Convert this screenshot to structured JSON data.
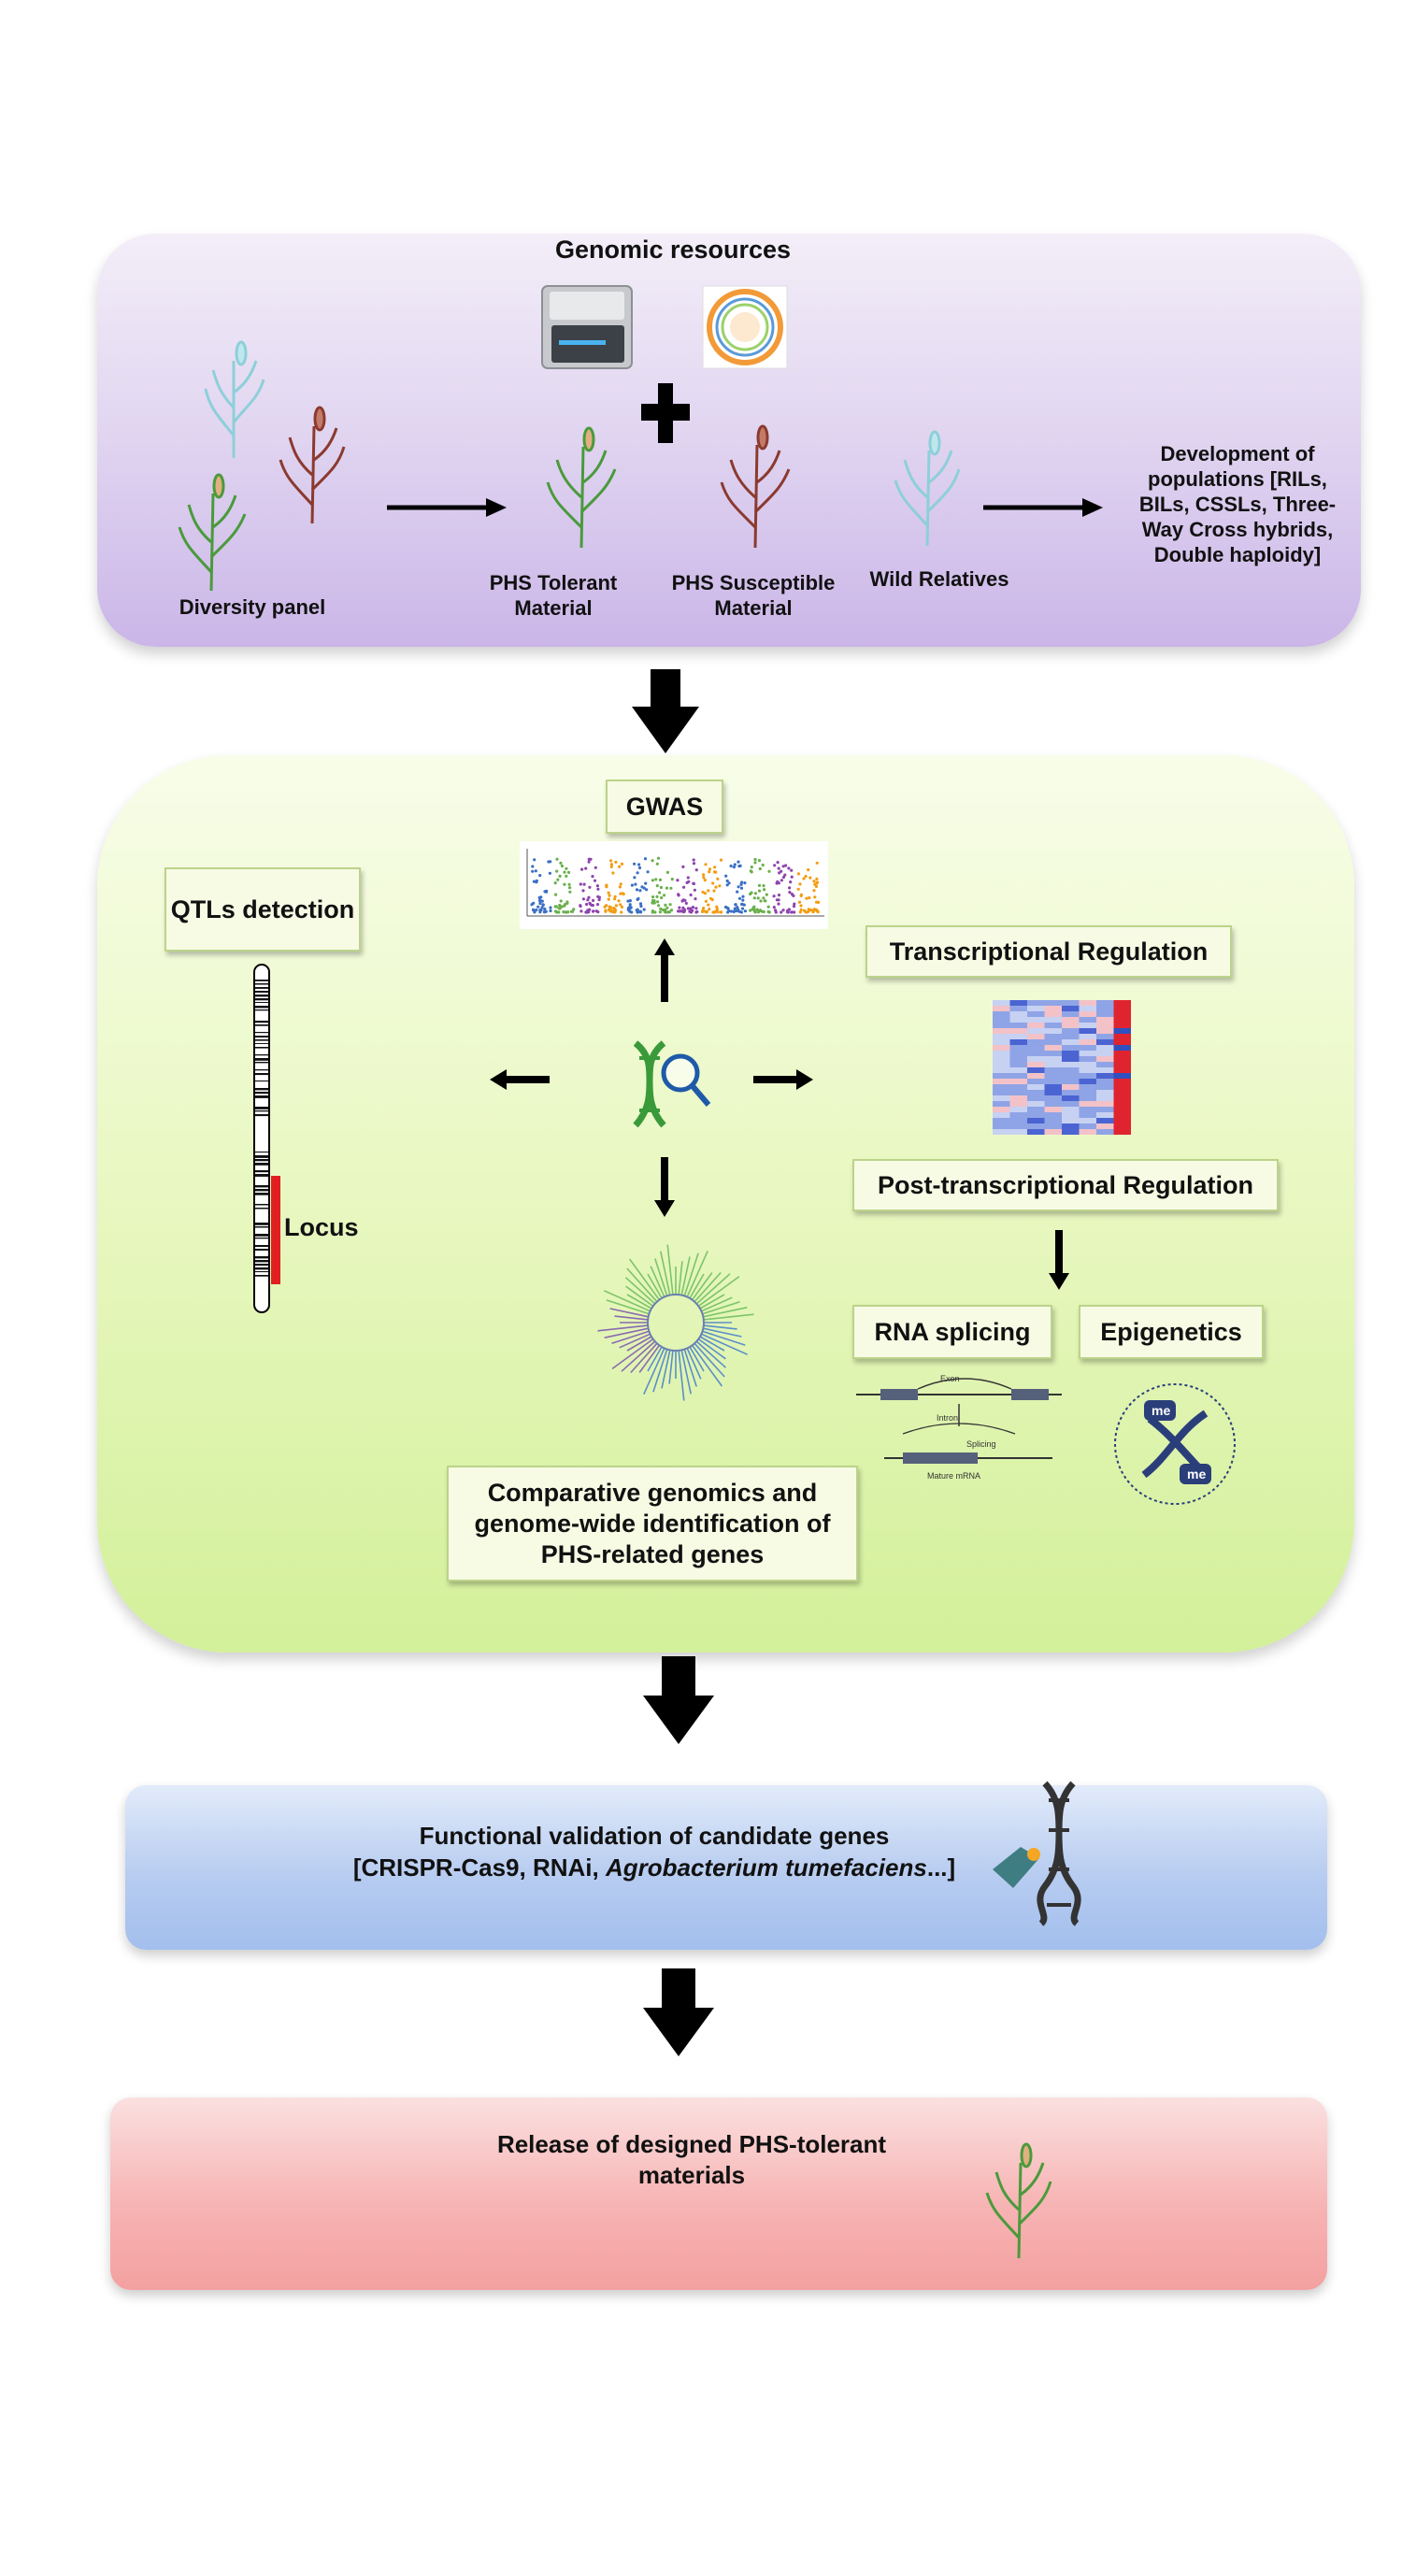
{
  "genomic_resources": {
    "title": "Genomic resources",
    "diversity_panel": "Diversity panel",
    "phs_tolerant": "PHS Tolerant Material",
    "phs_susceptible": "PHS Susceptible Material",
    "wild_relatives": "Wild Relatives",
    "development_of_populations": "Development of populations [RILs, BILs, CSSLs, Three-Way Cross hybrids, Double haploidy]"
  },
  "analysis": {
    "gwas": "GWAS",
    "qtls_detection": "QTLs detection",
    "locus": "Locus",
    "transcriptional_regulation": "Transcriptional Regulation",
    "post_transcriptional_regulation": "Post-transcriptional Regulation",
    "rna_splicing": "RNA splicing",
    "epigenetics": "Epigenetics",
    "comparative_genomics": "Comparative genomics and genome-wide identification of PHS-related genes",
    "splicing_labels": {
      "exon": "Exon",
      "intron": "Intron",
      "splicing": "Splicing",
      "mature_mrna": "Mature mRNA"
    },
    "methyl_label": "me"
  },
  "validation": {
    "line1": "Functional validation of candidate  genes",
    "line2_prefix": "[CRISPR-Cas9, RNAi, ",
    "line2_italic": "Agrobacterium tumefaciens",
    "line2_suffix": "...]"
  },
  "release": {
    "text": "Release of designed PHS-tolerant materials"
  },
  "colors": {
    "panel_purple": "#d9ccee",
    "panel_green": "#e6f7bc",
    "panel_blue": "#b7ccf0",
    "panel_pink": "#f7b4b4",
    "locus_red": "#e02020",
    "arrow": "#000000"
  }
}
